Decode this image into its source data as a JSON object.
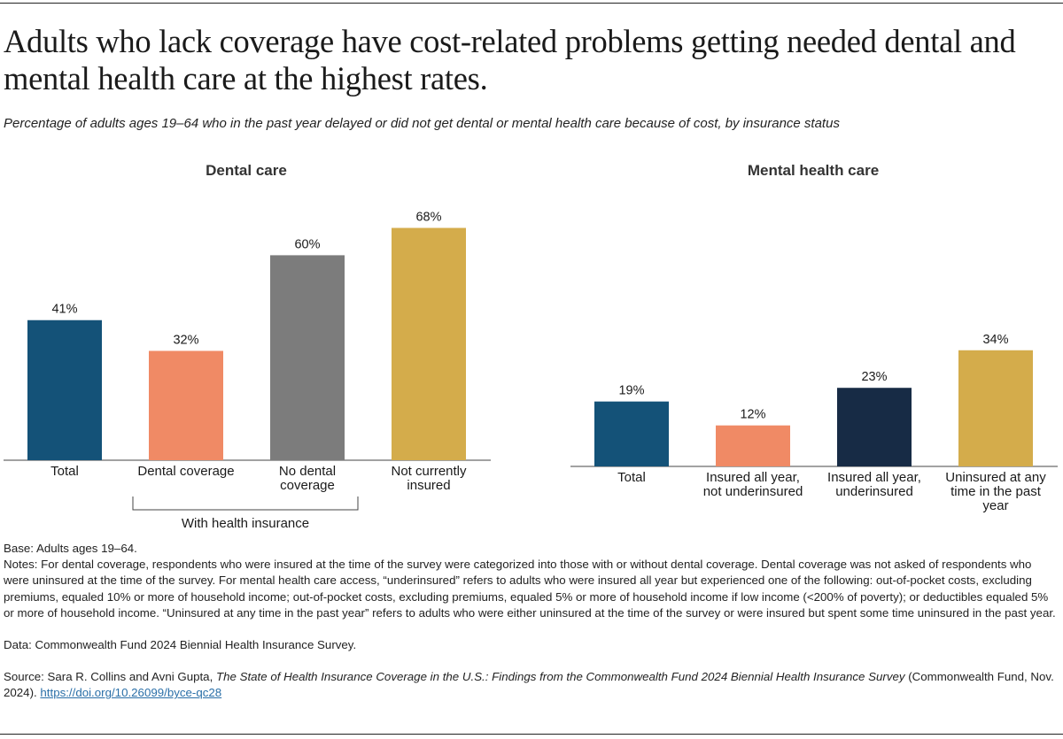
{
  "title": "Adults who lack coverage have cost-related problems getting needed dental and mental health care at the highest rates.",
  "subtitle": "Percentage of adults ages 19–64 who in the past year delayed or did not get dental or mental health care because of cost, by insurance status",
  "chart_data": [
    {
      "type": "bar",
      "title": "Dental care",
      "categories": [
        "Total",
        "Dental coverage",
        "No dental coverage",
        "Not currently insured"
      ],
      "category_lines": [
        [
          "Total"
        ],
        [
          "Dental coverage"
        ],
        [
          "No dental",
          "coverage"
        ],
        [
          "Not currently",
          "insured"
        ]
      ],
      "values": [
        41,
        32,
        60,
        68
      ],
      "data_labels": [
        "41%",
        "32%",
        "60%",
        "68%"
      ],
      "colors": [
        "#145278",
        "#f08a65",
        "#7c7c7c",
        "#d4ac4b"
      ],
      "group_bracket": {
        "label": "With health insurance",
        "covers": [
          "Dental coverage",
          "No dental coverage"
        ]
      },
      "ylim": [
        0,
        68
      ]
    },
    {
      "type": "bar",
      "title": "Mental health care",
      "categories": [
        "Total",
        "Insured all year, not underinsured",
        "Insured all year, underinsured",
        "Uninsured at any time in the past year"
      ],
      "category_lines": [
        [
          "Total"
        ],
        [
          "Insured all year,",
          "not underinsured"
        ],
        [
          "Insured all year,",
          "underinsured"
        ],
        [
          "Uninsured at any",
          "time in the past",
          "year"
        ]
      ],
      "values": [
        19,
        12,
        23,
        34
      ],
      "data_labels": [
        "19%",
        "12%",
        "23%",
        "34%"
      ],
      "colors": [
        "#145278",
        "#f08a65",
        "#172b45",
        "#d4ac4b"
      ],
      "ylim": [
        0,
        68
      ]
    }
  ],
  "notes": {
    "base": "Base: Adults ages 19–64.",
    "notes": "Notes: For dental coverage, respondents who were insured at the time of the survey were categorized into those with or without dental coverage. Dental coverage was not asked of respondents who were uninsured at the time of the survey. For mental health care access, “underinsured” refers to adults who were insured all year but experienced one of the following: out-of-pocket costs, excluding premiums, equaled 10% or more of household income; out-of-pocket costs, excluding premiums, equaled 5% or more of household income if low income (<200% of poverty); or deductibles equaled 5% or more of household income. “Uninsured at any time in the past year” refers to adults who were either uninsured at the time of the survey or were insured but spent some time uninsured in the past year.",
    "data": "Data: Commonwealth Fund 2024 Biennial Health Insurance Survey.",
    "source_prefix": "Source: Sara R. Collins and Avni Gupta, ",
    "source_title": "The State of Health Insurance Coverage in the U.S.: Findings from the Commonwealth Fund 2024 Biennial Health Insurance Survey",
    "source_suffix": " (Commonwealth Fund, Nov. 2024). ",
    "doi": "https://doi.org/10.26099/byce-qc28"
  }
}
